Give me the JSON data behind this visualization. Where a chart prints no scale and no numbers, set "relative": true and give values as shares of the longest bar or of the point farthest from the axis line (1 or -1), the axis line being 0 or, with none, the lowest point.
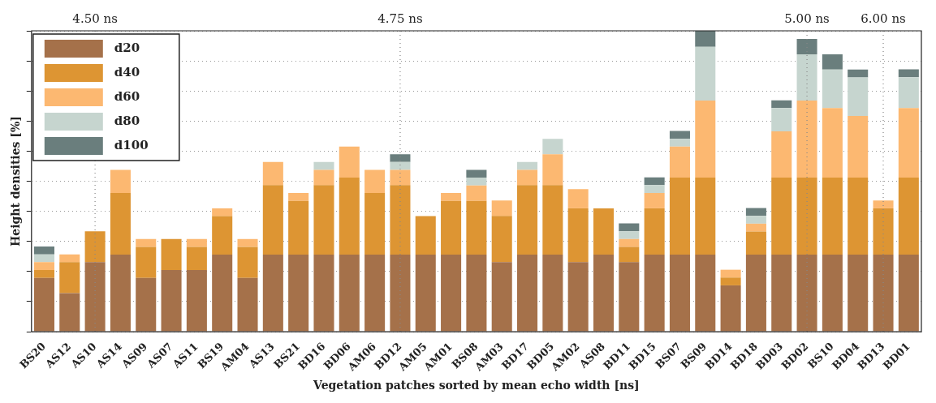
{
  "chart_data": {
    "type": "bar",
    "stacked": true,
    "relative": true,
    "xlabel": "Vegetation patches sorted by mean echo width [ns]",
    "ylabel": "Height densities [%]",
    "grid": "y",
    "legend": "top left",
    "categories": [
      "BS20",
      "AS12",
      "AS10",
      "AS14",
      "AS09",
      "AS07",
      "AS11",
      "BS19",
      "AM04",
      "AS13",
      "BS21",
      "BD16",
      "BD06",
      "AM06",
      "BD12",
      "AM05",
      "AM01",
      "BS08",
      "AM03",
      "BD17",
      "BD05",
      "AM02",
      "AS08",
      "BD11",
      "BD15",
      "BS07",
      "BS09",
      "BD14",
      "BD18",
      "BD03",
      "BD02",
      "BS10",
      "BD04",
      "BD13",
      "BD01"
    ],
    "series": [
      {
        "name": "d20",
        "color": "#a5714a",
        "values": [
          0.179,
          0.128,
          0.231,
          0.256,
          0.179,
          0.205,
          0.205,
          0.256,
          0.179,
          0.256,
          0.256,
          0.256,
          0.256,
          0.256,
          0.256,
          0.256,
          0.256,
          0.256,
          0.231,
          0.256,
          0.256,
          0.231,
          0.256,
          0.231,
          0.256,
          0.256,
          0.256,
          0.154,
          0.256,
          0.256,
          0.256,
          0.256,
          0.256,
          0.256,
          0.256
        ]
      },
      {
        "name": "d40",
        "color": "#dd9533",
        "values": [
          0.026,
          0.103,
          0.103,
          0.205,
          0.103,
          0.103,
          0.077,
          0.128,
          0.103,
          0.231,
          0.179,
          0.231,
          0.256,
          0.205,
          0.231,
          0.128,
          0.179,
          0.179,
          0.154,
          0.231,
          0.231,
          0.179,
          0.154,
          0.051,
          0.154,
          0.256,
          0.256,
          0.026,
          0.077,
          0.256,
          0.256,
          0.256,
          0.256,
          0.154,
          0.256
        ]
      },
      {
        "name": "d60",
        "color": "#fcb871",
        "values": [
          0.026,
          0.026,
          0,
          0.077,
          0.026,
          0,
          0.026,
          0.026,
          0.026,
          0.077,
          0.026,
          0.051,
          0.103,
          0.077,
          0.051,
          0,
          0.026,
          0.051,
          0.051,
          0.051,
          0.103,
          0.064,
          0,
          0.026,
          0.051,
          0.103,
          0.256,
          0.026,
          0.026,
          0.154,
          0.256,
          0.231,
          0.205,
          0.026,
          0.231
        ]
      },
      {
        "name": "d80",
        "color": "#c6d5cf",
        "values": [
          0.026,
          0,
          0,
          0,
          0,
          0,
          0,
          0,
          0,
          0,
          0,
          0.026,
          0,
          0,
          0.026,
          0,
          0,
          0.026,
          0,
          0.026,
          0.051,
          0,
          0,
          0.026,
          0.026,
          0.026,
          0.179,
          0,
          0.026,
          0.077,
          0.154,
          0.128,
          0.128,
          0,
          0.103
        ]
      },
      {
        "name": "d100",
        "color": "#6a7e7d",
        "values": [
          0.026,
          0,
          0,
          0,
          0,
          0,
          0,
          0,
          0,
          0,
          0,
          0,
          0,
          0,
          0.026,
          0,
          0,
          0.026,
          0,
          0,
          0,
          0,
          0,
          0.026,
          0.026,
          0.026,
          0.053,
          0,
          0.026,
          0.026,
          0.051,
          0.051,
          0.026,
          0,
          0.026
        ]
      }
    ],
    "ref_lines": [
      {
        "axis": "x",
        "value": "AS10",
        "label": "4.50 ns",
        "line_style": "dotted"
      },
      {
        "axis": "x",
        "value": "BD12",
        "label": "4.75 ns",
        "line_style": "dotted"
      },
      {
        "axis": "x",
        "value": "BD02",
        "label": "5.00 ns",
        "line_style": "dotted"
      },
      {
        "axis": "x",
        "value": "BD13",
        "label": "6.00 ns",
        "line_style": "dotted"
      }
    ]
  }
}
